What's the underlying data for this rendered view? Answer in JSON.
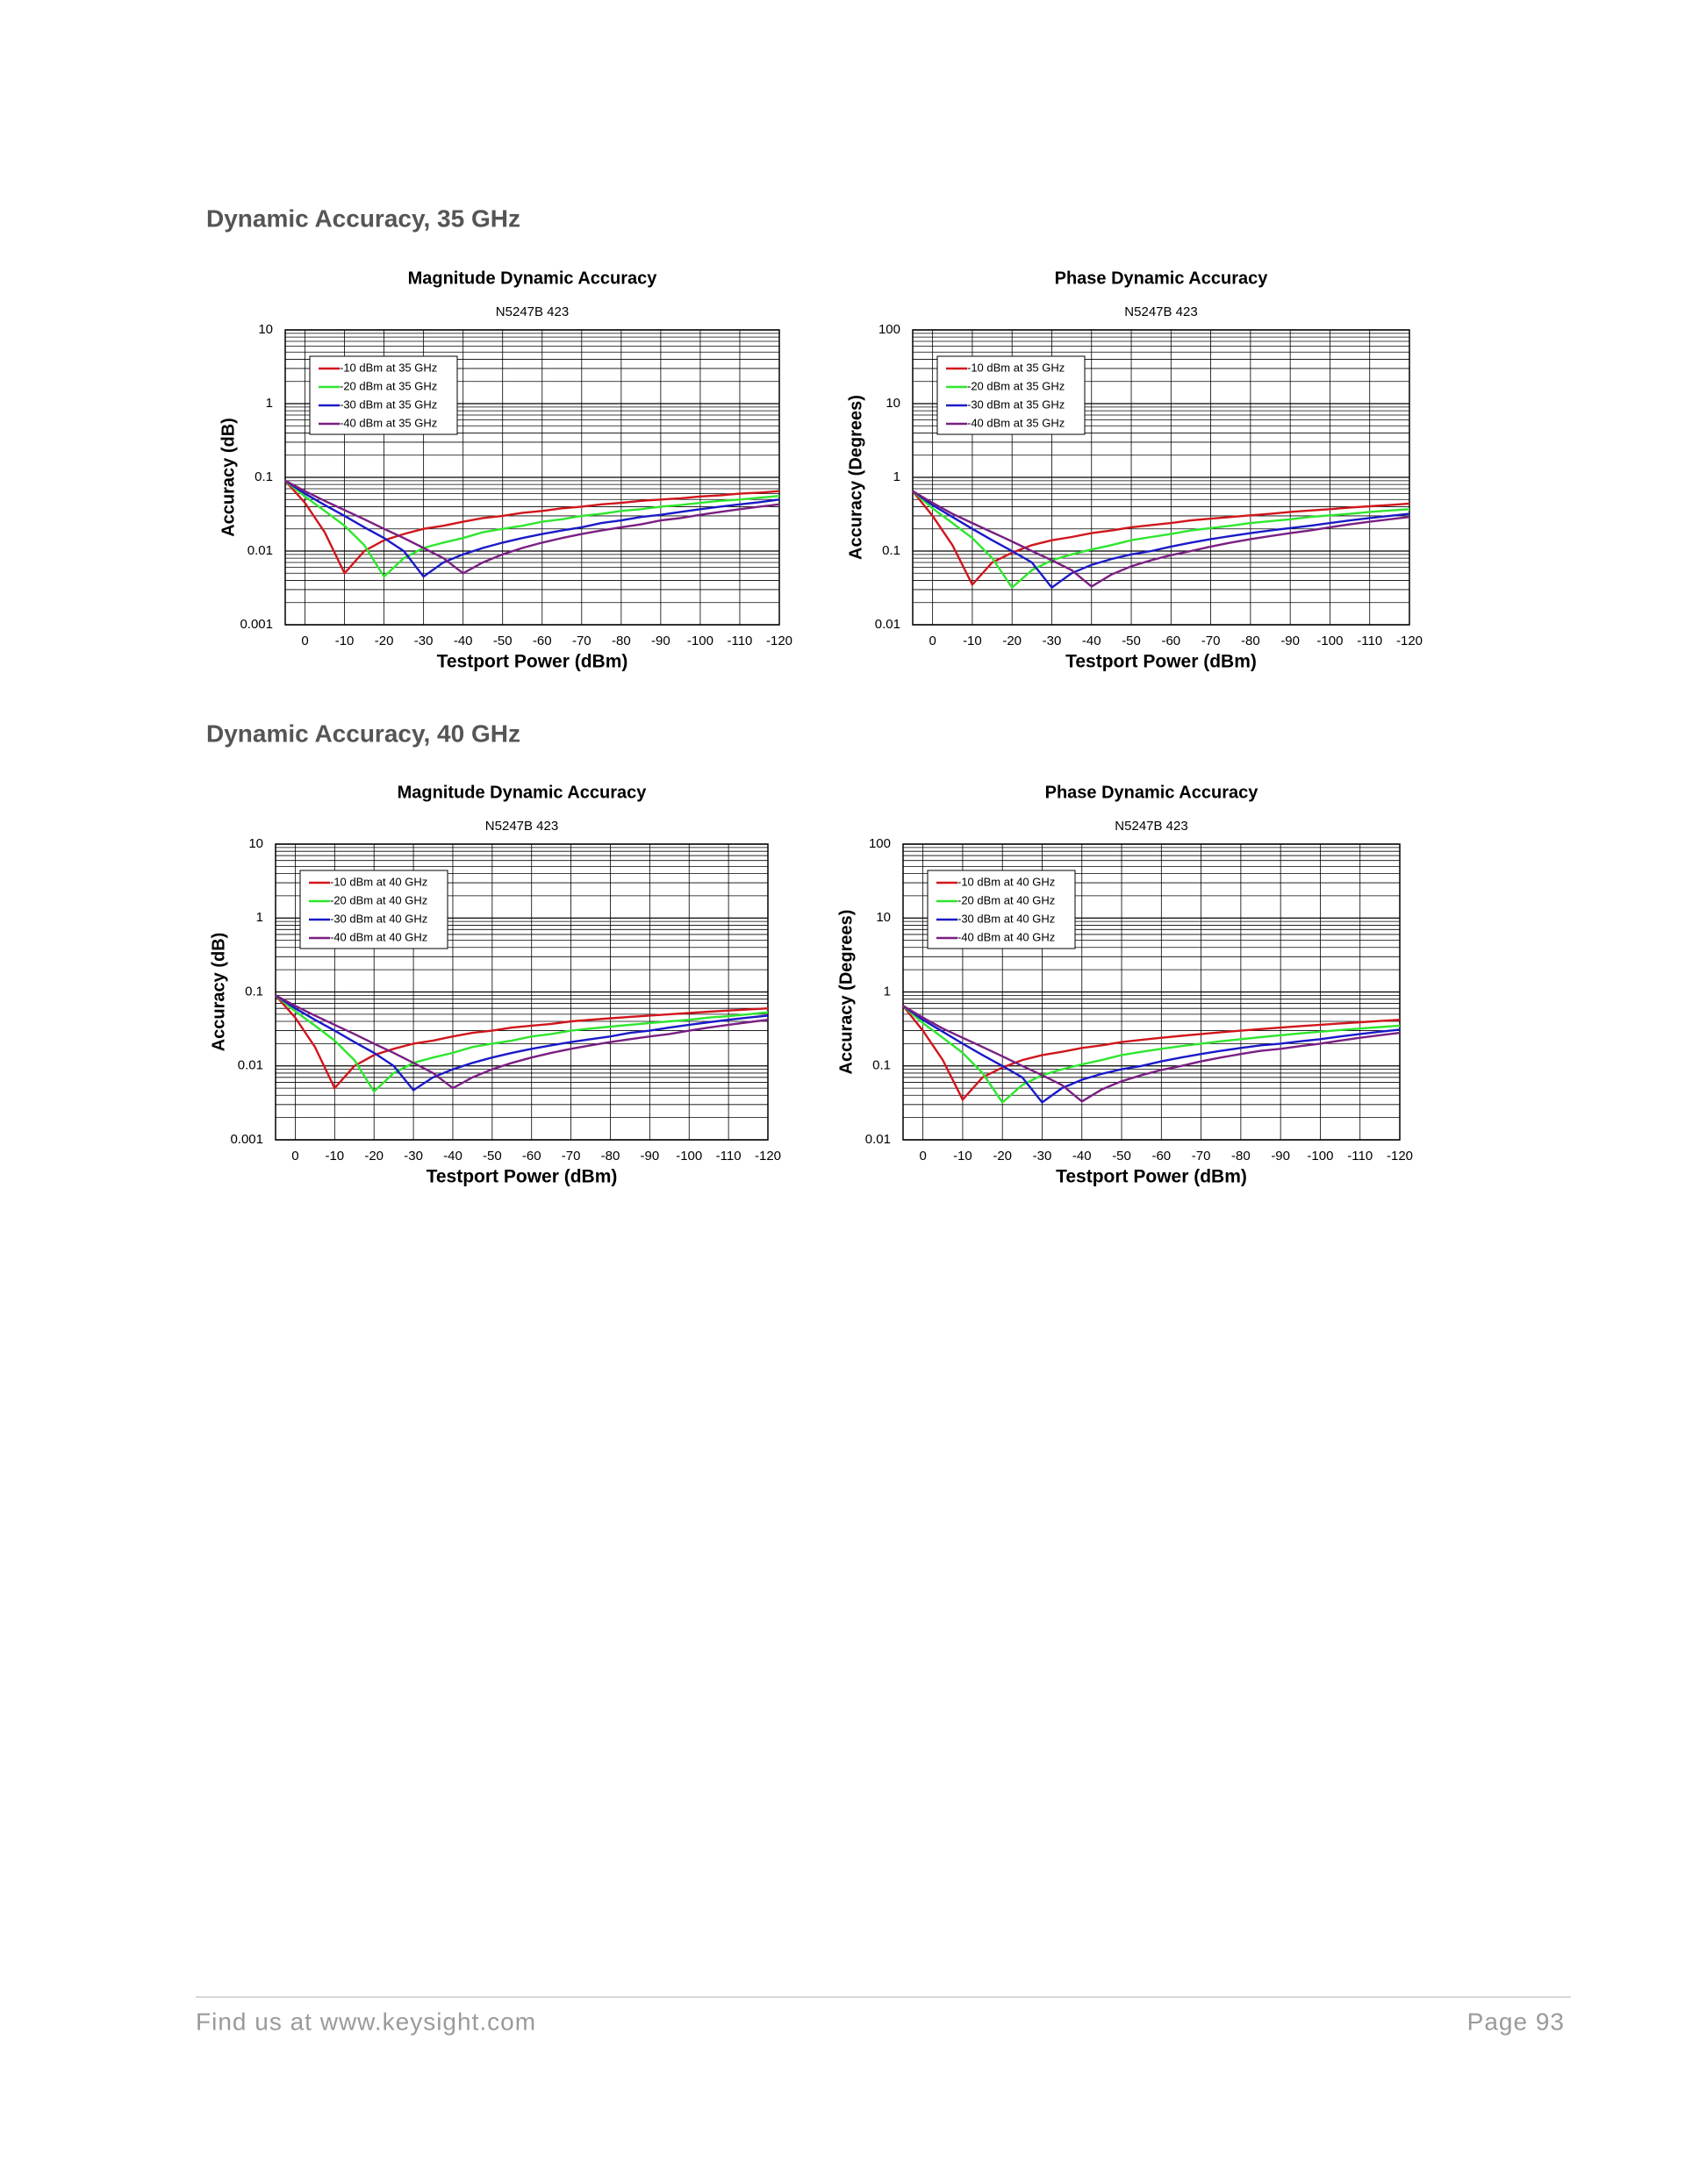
{
  "headings": [
    "Dynamic Accuracy, 35 GHz",
    "Dynamic Accuracy, 40 GHz"
  ],
  "footer": {
    "left": "Find us at www.keysight.com",
    "right": "Page 93"
  },
  "chart_data": [
    {
      "type": "line",
      "title": "Magnitude Dynamic Accuracy",
      "subtitle": "N5247B 423",
      "xlabel": "Testport Power (dBm)",
      "ylabel": "Accuracy (dB)",
      "x": [
        5,
        0,
        -5,
        -10,
        -15,
        -20,
        -25,
        -30,
        -35,
        -40,
        -45,
        -50,
        -55,
        -60,
        -65,
        -70,
        -75,
        -80,
        -85,
        -90,
        -95,
        -100,
        -105,
        -110,
        -115,
        -120
      ],
      "xlim": [
        5,
        -120
      ],
      "xticks": [
        0,
        -10,
        -20,
        -30,
        -40,
        -50,
        -60,
        -70,
        -80,
        -90,
        -100,
        -110,
        -120
      ],
      "ylim": [
        0.001,
        10
      ],
      "yticks": [
        0.001,
        0.01,
        0.1,
        1,
        10
      ],
      "yscale": "log",
      "grid": true,
      "legend": "upper left",
      "series": [
        {
          "name": "-10 dBm at 35 GHz",
          "color": "#d0161c",
          "values": [
            0.09,
            0.045,
            0.018,
            0.005,
            0.01,
            0.014,
            0.017,
            0.02,
            0.022,
            0.025,
            0.028,
            0.03,
            0.033,
            0.035,
            0.038,
            0.04,
            0.043,
            0.045,
            0.048,
            0.05,
            0.052,
            0.055,
            0.057,
            0.06,
            0.062,
            0.065
          ]
        },
        {
          "name": "-20 dBm at 35 GHz",
          "color": "#2ee62e",
          "values": [
            0.09,
            0.055,
            0.035,
            0.022,
            0.012,
            0.0045,
            0.008,
            0.011,
            0.013,
            0.015,
            0.018,
            0.02,
            0.022,
            0.025,
            0.027,
            0.03,
            0.032,
            0.035,
            0.037,
            0.04,
            0.042,
            0.045,
            0.048,
            0.05,
            0.053,
            0.056
          ]
        },
        {
          "name": "-30 dBm at 35 GHz",
          "color": "#1a1ac8",
          "values": [
            0.09,
            0.06,
            0.042,
            0.03,
            0.021,
            0.015,
            0.01,
            0.0045,
            0.007,
            0.009,
            0.011,
            0.013,
            0.015,
            0.017,
            0.019,
            0.021,
            0.024,
            0.026,
            0.029,
            0.031,
            0.034,
            0.037,
            0.04,
            0.043,
            0.046,
            0.05
          ]
        },
        {
          "name": "-40 dBm at 35 GHz",
          "color": "#7a1f82",
          "values": [
            0.09,
            0.065,
            0.048,
            0.036,
            0.027,
            0.02,
            0.015,
            0.011,
            0.008,
            0.005,
            0.007,
            0.009,
            0.011,
            0.013,
            0.015,
            0.017,
            0.019,
            0.021,
            0.023,
            0.026,
            0.028,
            0.031,
            0.034,
            0.037,
            0.04,
            0.043
          ]
        }
      ]
    },
    {
      "type": "line",
      "title": "Phase Dynamic Accuracy",
      "subtitle": "N5247B 423",
      "xlabel": "Testport Power (dBm)",
      "ylabel": "Accuracy (Degrees)",
      "x": [
        5,
        0,
        -5,
        -10,
        -15,
        -20,
        -25,
        -30,
        -35,
        -40,
        -45,
        -50,
        -55,
        -60,
        -65,
        -70,
        -75,
        -80,
        -85,
        -90,
        -95,
        -100,
        -105,
        -110,
        -115,
        -120
      ],
      "xlim": [
        5,
        -120
      ],
      "xticks": [
        0,
        -10,
        -20,
        -30,
        -40,
        -50,
        -60,
        -70,
        -80,
        -90,
        -100,
        -110,
        -120
      ],
      "ylim": [
        0.01,
        100
      ],
      "yticks": [
        0.01,
        0.1,
        1,
        10,
        100
      ],
      "yscale": "log",
      "grid": true,
      "legend": "upper left",
      "series": [
        {
          "name": "-10 dBm at 35 GHz",
          "color": "#d0161c",
          "values": [
            0.65,
            0.3,
            0.12,
            0.035,
            0.07,
            0.095,
            0.12,
            0.14,
            0.155,
            0.175,
            0.19,
            0.21,
            0.225,
            0.24,
            0.26,
            0.275,
            0.29,
            0.305,
            0.32,
            0.34,
            0.355,
            0.37,
            0.39,
            0.405,
            0.42,
            0.44
          ]
        },
        {
          "name": "-20 dBm at 35 GHz",
          "color": "#2ee62e",
          "values": [
            0.65,
            0.38,
            0.24,
            0.15,
            0.08,
            0.032,
            0.055,
            0.075,
            0.09,
            0.105,
            0.12,
            0.14,
            0.155,
            0.17,
            0.19,
            0.205,
            0.22,
            0.24,
            0.255,
            0.27,
            0.29,
            0.305,
            0.32,
            0.34,
            0.355,
            0.37
          ]
        },
        {
          "name": "-30 dBm at 35 GHz",
          "color": "#1a1ac8",
          "values": [
            0.65,
            0.42,
            0.29,
            0.2,
            0.14,
            0.1,
            0.07,
            0.032,
            0.05,
            0.065,
            0.078,
            0.09,
            0.1,
            0.115,
            0.13,
            0.145,
            0.16,
            0.175,
            0.19,
            0.205,
            0.22,
            0.24,
            0.26,
            0.28,
            0.3,
            0.32
          ]
        },
        {
          "name": "-40 dBm at 35 GHz",
          "color": "#7a1f82",
          "values": [
            0.65,
            0.45,
            0.32,
            0.24,
            0.18,
            0.135,
            0.1,
            0.075,
            0.055,
            0.033,
            0.048,
            0.062,
            0.075,
            0.088,
            0.1,
            0.115,
            0.13,
            0.145,
            0.16,
            0.175,
            0.19,
            0.21,
            0.23,
            0.25,
            0.27,
            0.29
          ]
        }
      ]
    },
    {
      "type": "line",
      "title": "Magnitude Dynamic Accuracy",
      "subtitle": "N5247B 423",
      "xlabel": "Testport Power (dBm)",
      "ylabel": "Accuracy (dB)",
      "x": [
        5,
        0,
        -5,
        -10,
        -15,
        -20,
        -25,
        -30,
        -35,
        -40,
        -45,
        -50,
        -55,
        -60,
        -65,
        -70,
        -75,
        -80,
        -85,
        -90,
        -95,
        -100,
        -105,
        -110,
        -115,
        -120
      ],
      "xlim": [
        5,
        -120
      ],
      "xticks": [
        0,
        -10,
        -20,
        -30,
        -40,
        -50,
        -60,
        -70,
        -80,
        -90,
        -100,
        -110,
        -120
      ],
      "ylim": [
        0.001,
        10
      ],
      "yticks": [
        0.001,
        0.01,
        0.1,
        1,
        10
      ],
      "yscale": "log",
      "grid": true,
      "legend": "upper left",
      "series": [
        {
          "name": "-10 dBm at 40 GHz",
          "color": "#d0161c",
          "values": [
            0.09,
            0.045,
            0.018,
            0.005,
            0.01,
            0.014,
            0.017,
            0.02,
            0.022,
            0.025,
            0.028,
            0.03,
            0.033,
            0.035,
            0.037,
            0.04,
            0.042,
            0.044,
            0.046,
            0.048,
            0.05,
            0.052,
            0.054,
            0.056,
            0.058,
            0.06
          ]
        },
        {
          "name": "-20 dBm at 40 GHz",
          "color": "#2ee62e",
          "values": [
            0.09,
            0.055,
            0.035,
            0.022,
            0.012,
            0.0045,
            0.008,
            0.011,
            0.013,
            0.015,
            0.018,
            0.02,
            0.022,
            0.025,
            0.027,
            0.03,
            0.032,
            0.034,
            0.036,
            0.038,
            0.04,
            0.042,
            0.045,
            0.047,
            0.05,
            0.053
          ]
        },
        {
          "name": "-30 dBm at 40 GHz",
          "color": "#1a1ac8",
          "values": [
            0.09,
            0.06,
            0.042,
            0.03,
            0.021,
            0.015,
            0.01,
            0.0047,
            0.007,
            0.009,
            0.011,
            0.013,
            0.015,
            0.017,
            0.019,
            0.021,
            0.023,
            0.025,
            0.028,
            0.03,
            0.033,
            0.036,
            0.039,
            0.042,
            0.045,
            0.048
          ]
        },
        {
          "name": "-40 dBm at 40 GHz",
          "color": "#7a1f82",
          "values": [
            0.09,
            0.065,
            0.048,
            0.036,
            0.027,
            0.02,
            0.015,
            0.011,
            0.008,
            0.005,
            0.007,
            0.009,
            0.011,
            0.013,
            0.015,
            0.017,
            0.019,
            0.021,
            0.023,
            0.025,
            0.027,
            0.03,
            0.033,
            0.036,
            0.039,
            0.042
          ]
        }
      ]
    },
    {
      "type": "line",
      "title": "Phase Dynamic Accuracy",
      "subtitle": "N5247B 423",
      "xlabel": "Testport Power (dBm)",
      "ylabel": "Accuracy (Degrees)",
      "x": [
        5,
        0,
        -5,
        -10,
        -15,
        -20,
        -25,
        -30,
        -35,
        -40,
        -45,
        -50,
        -55,
        -60,
        -65,
        -70,
        -75,
        -80,
        -85,
        -90,
        -95,
        -100,
        -105,
        -110,
        -115,
        -120
      ],
      "xlim": [
        5,
        -120
      ],
      "xticks": [
        0,
        -10,
        -20,
        -30,
        -40,
        -50,
        -60,
        -70,
        -80,
        -90,
        -100,
        -110,
        -120
      ],
      "ylim": [
        0.01,
        100
      ],
      "yticks": [
        0.01,
        0.1,
        1,
        10,
        100
      ],
      "yscale": "log",
      "grid": true,
      "legend": "upper left",
      "series": [
        {
          "name": "-10 dBm at 40 GHz",
          "color": "#d0161c",
          "values": [
            0.65,
            0.3,
            0.12,
            0.035,
            0.07,
            0.095,
            0.12,
            0.14,
            0.155,
            0.175,
            0.19,
            0.21,
            0.225,
            0.24,
            0.255,
            0.27,
            0.285,
            0.3,
            0.315,
            0.33,
            0.345,
            0.36,
            0.375,
            0.39,
            0.405,
            0.42
          ]
        },
        {
          "name": "-20 dBm at 40 GHz",
          "color": "#2ee62e",
          "values": [
            0.65,
            0.38,
            0.24,
            0.15,
            0.08,
            0.032,
            0.055,
            0.075,
            0.09,
            0.105,
            0.12,
            0.14,
            0.155,
            0.17,
            0.185,
            0.2,
            0.215,
            0.23,
            0.245,
            0.26,
            0.275,
            0.29,
            0.305,
            0.32,
            0.335,
            0.35
          ]
        },
        {
          "name": "-30 dBm at 40 GHz",
          "color": "#1a1ac8",
          "values": [
            0.65,
            0.42,
            0.29,
            0.2,
            0.14,
            0.1,
            0.07,
            0.032,
            0.05,
            0.065,
            0.078,
            0.09,
            0.1,
            0.115,
            0.13,
            0.145,
            0.16,
            0.175,
            0.19,
            0.2,
            0.215,
            0.23,
            0.25,
            0.27,
            0.29,
            0.31
          ]
        },
        {
          "name": "-40 dBm at 40 GHz",
          "color": "#7a1f82",
          "values": [
            0.65,
            0.45,
            0.32,
            0.24,
            0.18,
            0.135,
            0.1,
            0.075,
            0.055,
            0.033,
            0.048,
            0.062,
            0.075,
            0.088,
            0.1,
            0.115,
            0.13,
            0.145,
            0.16,
            0.17,
            0.185,
            0.2,
            0.22,
            0.24,
            0.26,
            0.28
          ]
        }
      ]
    }
  ]
}
